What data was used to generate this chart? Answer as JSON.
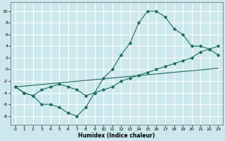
{
  "xlabel": "Humidex (Indice chaleur)",
  "bg_color": "#cce8ec",
  "grid_color": "#ffffff",
  "line_color": "#1e6b5e",
  "xlim": [
    -0.5,
    23.5
  ],
  "ylim": [
    -9.5,
    11.5
  ],
  "xticks": [
    0,
    1,
    2,
    3,
    4,
    5,
    6,
    7,
    8,
    9,
    10,
    11,
    12,
    13,
    14,
    15,
    16,
    17,
    18,
    19,
    20,
    21,
    22,
    23
  ],
  "yticks": [
    -8,
    -6,
    -4,
    -2,
    0,
    2,
    4,
    6,
    8,
    10
  ],
  "line1_x": [
    0,
    1,
    2,
    3,
    4,
    5,
    6,
    7,
    8,
    9,
    10,
    11,
    12,
    13,
    14,
    15,
    16,
    17,
    18,
    19,
    20,
    21,
    22,
    23
  ],
  "line1_y": [
    -3,
    -4,
    -4.5,
    -6,
    -6,
    -6.5,
    -7.5,
    -8,
    -6.5,
    -4,
    -1.5,
    0,
    2.5,
    4.5,
    8,
    10,
    10,
    9,
    7,
    6,
    4,
    4,
    3.5,
    2.5
  ],
  "line2_x": [
    0,
    1,
    2,
    3,
    4,
    5,
    6,
    7,
    8,
    9,
    10,
    11,
    12,
    13,
    14,
    15,
    16,
    17,
    18,
    19,
    20,
    21,
    22,
    23
  ],
  "line2_y": [
    -3,
    -4,
    -4.5,
    -3.5,
    -3,
    -2.5,
    -3,
    -3.5,
    -4.5,
    -4,
    -3.5,
    -3,
    -2,
    -1.5,
    -1,
    -0.5,
    0,
    0.5,
    1,
    1.5,
    2,
    3,
    3.5,
    4
  ],
  "line3_x": [
    0,
    23
  ],
  "line3_y": [
    -3,
    0.2
  ]
}
